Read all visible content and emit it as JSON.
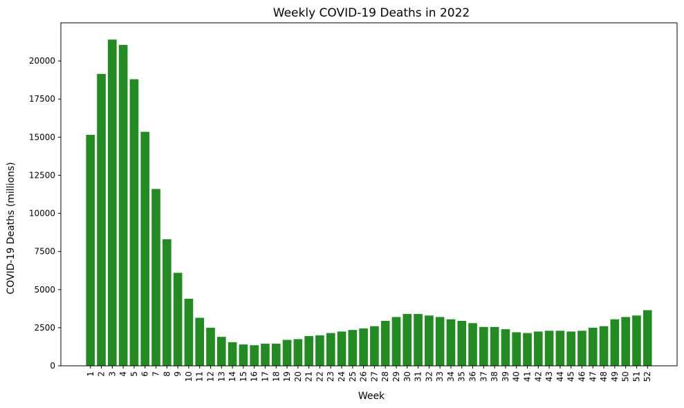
{
  "chart_data": {
    "type": "bar",
    "title": "Weekly COVID-19 Deaths in 2022",
    "xlabel": "Week",
    "ylabel": "COVID-19 Deaths (millions)",
    "ylim": [
      0,
      22500
    ],
    "yticks": [
      0,
      2500,
      5000,
      7500,
      10000,
      12500,
      15000,
      17500,
      20000
    ],
    "grid": false,
    "bar_color": "#228b22",
    "categories": [
      "1",
      "2",
      "3",
      "4",
      "5",
      "6",
      "7",
      "8",
      "9",
      "10",
      "11",
      "12",
      "13",
      "14",
      "15",
      "16",
      "17",
      "18",
      "19",
      "20",
      "21",
      "22",
      "23",
      "24",
      "25",
      "26",
      "27",
      "28",
      "29",
      "30",
      "31",
      "32",
      "33",
      "34",
      "35",
      "36",
      "37",
      "38",
      "39",
      "40",
      "41",
      "42",
      "43",
      "44",
      "45",
      "46",
      "47",
      "48",
      "49",
      "50",
      "51",
      "52"
    ],
    "values": [
      15150,
      19150,
      21400,
      21050,
      18800,
      15350,
      11600,
      8300,
      6100,
      4400,
      3150,
      2500,
      1900,
      1550,
      1400,
      1350,
      1450,
      1450,
      1700,
      1750,
      1950,
      2000,
      2150,
      2250,
      2350,
      2450,
      2600,
      2950,
      3200,
      3400,
      3400,
      3300,
      3200,
      3050,
      2950,
      2800,
      2550,
      2550,
      2400,
      2200,
      2150,
      2250,
      2300,
      2300,
      2250,
      2300,
      2500,
      2600,
      3050,
      3200,
      3300,
      3650
    ]
  }
}
